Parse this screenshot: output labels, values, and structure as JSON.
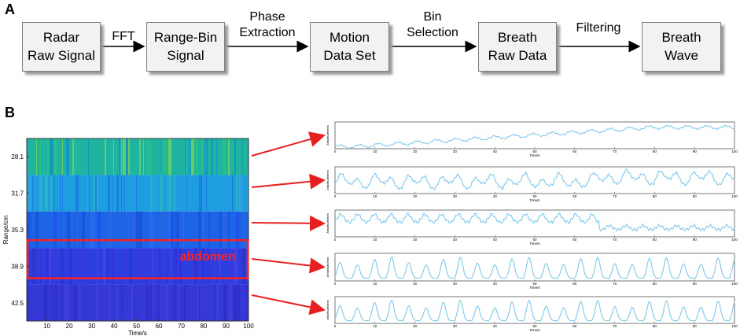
{
  "panel_a_label": "A",
  "panel_b_label": "B",
  "flow": {
    "nodes": [
      {
        "line1": "Radar",
        "line2": "Raw Signal"
      },
      {
        "line1": "Range-Bin",
        "line2": "Signal"
      },
      {
        "line1": "Motion",
        "line2": "Data Set"
      },
      {
        "line1": "Breath",
        "line2": "Raw Data"
      },
      {
        "line1": "Breath",
        "line2": "Wave"
      }
    ],
    "edges": [
      {
        "line1": "FFT",
        "line2": ""
      },
      {
        "line1": "Phase",
        "line2": "Extraction"
      },
      {
        "line1": "Bin",
        "line2": "Selection"
      },
      {
        "line1": "Filtering",
        "line2": ""
      }
    ]
  },
  "heatmap": {
    "ylabel": "Range/cm",
    "xlabel": "Time/s",
    "ytick_labels": [
      "28.1",
      "31.7",
      "35.3",
      "38.9",
      "42.5"
    ],
    "xtick_labels": [
      "10",
      "20",
      "30",
      "40",
      "50",
      "60",
      "70",
      "80",
      "90",
      "100"
    ],
    "highlight_label": "abdomen",
    "highlight_color": "#ff2020",
    "band_colors": [
      "#1eb4a0",
      "#1e9ee0",
      "#1e64e6",
      "#2c3ee0",
      "#3438d6"
    ]
  },
  "waveforms": {
    "ylabel": "Amplitude/mm",
    "xlabel": "Time/s",
    "xtick_labels": [
      "0",
      "10",
      "20",
      "30",
      "40",
      "50",
      "60",
      "70",
      "80",
      "90",
      "100"
    ],
    "line_color": "#7ec8ec"
  },
  "arrow_color": "#e62020"
}
